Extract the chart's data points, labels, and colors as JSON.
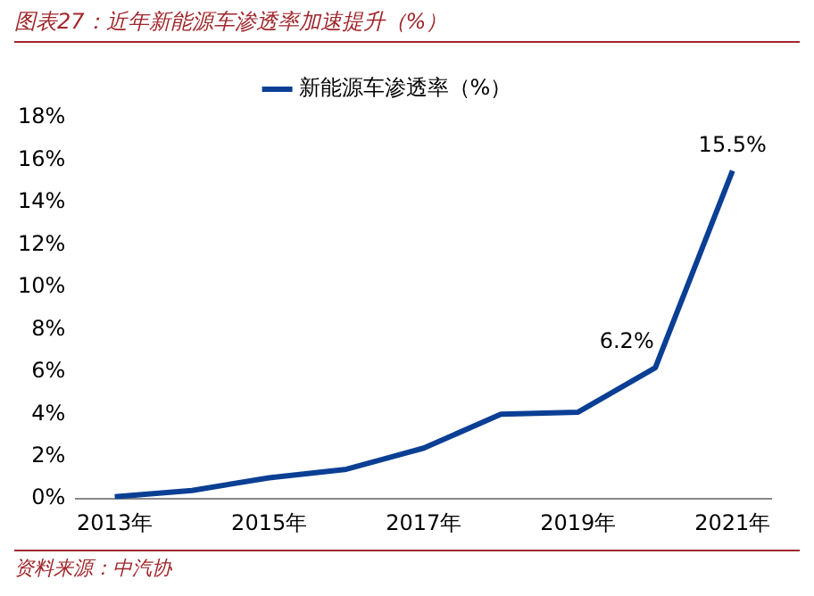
{
  "chart_data": {
    "type": "line",
    "title": "图表27：近年新能源车渗透率加速提升（%）",
    "categories": [
      "2013年",
      null,
      "2015年",
      null,
      "2017年",
      null,
      "2019年",
      null,
      "2021年"
    ],
    "series": [
      {
        "name": "新能源车渗透率（%）",
        "color": "#0b3f94",
        "values": [
          0.1,
          0.4,
          1.0,
          1.4,
          2.4,
          4.0,
          4.1,
          6.2,
          15.5
        ],
        "value_labels": [
          null,
          null,
          null,
          null,
          null,
          null,
          null,
          "6.2%",
          "15.5%"
        ]
      }
    ],
    "ylim": [
      0,
      18
    ],
    "yticks": [
      {
        "value": 0,
        "label": "0%"
      },
      {
        "value": 2,
        "label": "2%"
      },
      {
        "value": 4,
        "label": "4%"
      },
      {
        "value": 6,
        "label": "6%"
      },
      {
        "value": 8,
        "label": "8%"
      },
      {
        "value": 10,
        "label": "10%"
      },
      {
        "value": 12,
        "label": "12%"
      },
      {
        "value": 14,
        "label": "14%"
      },
      {
        "value": 16,
        "label": "16%"
      },
      {
        "value": 18,
        "label": "18%"
      }
    ],
    "grid": false,
    "legend": "top",
    "marker": "none",
    "line_style": "solid",
    "annotations": [
      "资料来源：中汽协"
    ]
  }
}
